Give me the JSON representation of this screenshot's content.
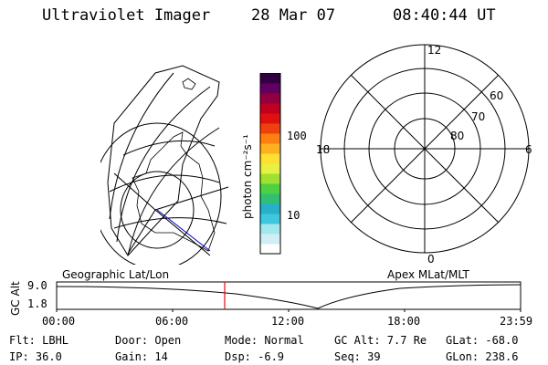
{
  "header": {
    "instrument": "Ultraviolet Imager",
    "date": "28 Mar 07",
    "time": "08:40:44 UT"
  },
  "colorbar": {
    "unit_label": "photon cm⁻²s⁻¹",
    "ticks": [
      "100",
      "10"
    ],
    "colors": [
      "#ffffff",
      "#cfeff4",
      "#a0e8ee",
      "#3ec8e0",
      "#28b0c8",
      "#30c070",
      "#50d040",
      "#a0e030",
      "#e8f040",
      "#ffe030",
      "#ffb020",
      "#ff8010",
      "#f04010",
      "#e01010",
      "#c00020",
      "#900040",
      "#600060",
      "#300040"
    ]
  },
  "polar_plot": {
    "mlt_labels": [
      "12",
      "18",
      "6",
      "0"
    ],
    "lat_labels": [
      "60",
      "70",
      "80"
    ]
  },
  "timeline": {
    "left_label": "Geographic Lat/Lon",
    "right_label": "Apex MLat/MLT",
    "axis_title": "GC Alt",
    "y_ticks": [
      "9.0",
      "1.8"
    ],
    "x_ticks": [
      "00:00",
      "06:00",
      "12:00",
      "18:00",
      "23:59"
    ],
    "current_marker_color": "#ff0000"
  },
  "footer": {
    "flt": "Flt: LBHL",
    "ip": "IP: 36.0",
    "door": "Door: Open",
    "gain": "Gain: 14",
    "mode": "Mode: Normal",
    "dsp": "Dsp:   -6.9",
    "gcalt": "GC Alt: 7.7 Re",
    "seq": "Seq: 39",
    "glat": "GLat: -68.0",
    "glon": "GLon: 238.6"
  }
}
